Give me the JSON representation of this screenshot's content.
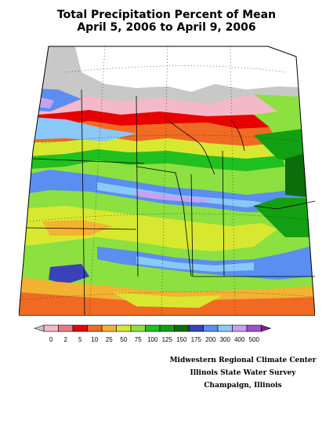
{
  "title": {
    "line1": "Total Precipitation Percent of Mean",
    "line2": "April 5, 2006 to April 9, 2006"
  },
  "legend": {
    "ticks": [
      "0",
      "2",
      "5",
      "10",
      "25",
      "50",
      "75",
      "100",
      "125",
      "150",
      "175",
      "200",
      "300",
      "400",
      "500"
    ],
    "colors": [
      "#c8c8c8",
      "#f4b8c8",
      "#e87888",
      "#e80000",
      "#f06a24",
      "#f3b232",
      "#d8e830",
      "#8ce040",
      "#20c020",
      "#12a012",
      "#0a6e0a",
      "#3a42b8",
      "#5a8ef0",
      "#8ac8f8",
      "#c8a0f0",
      "#a050c8",
      "#8c1a8c"
    ]
  },
  "credits": {
    "line1": "Midwestern Regional Climate Center",
    "line2": "Illinois State Water Survey",
    "line3": "Champaign, Illinois"
  }
}
